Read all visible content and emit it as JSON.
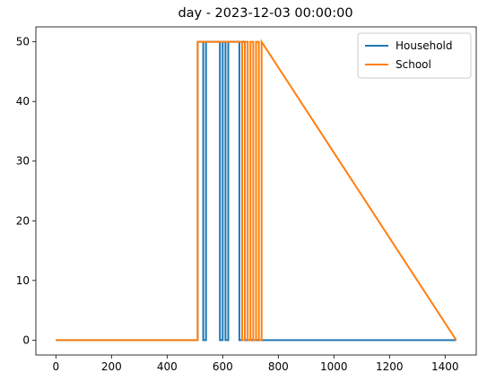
{
  "chart_data": {
    "type": "line",
    "title": "day - 2023-12-03 00:00:00",
    "xlabel": "",
    "ylabel": "",
    "xlim": [
      -72,
      1512
    ],
    "ylim": [
      -2.5,
      52.5
    ],
    "xticks": [
      0,
      200,
      400,
      600,
      800,
      1000,
      1200,
      1400
    ],
    "yticks": [
      0,
      10,
      20,
      30,
      40,
      50
    ],
    "grid": false,
    "legend_position": "top-right",
    "series": [
      {
        "name": "Household",
        "color": "#1f77b4",
        "x": [
          0,
          510,
          510,
          530,
          530,
          540,
          540,
          590,
          590,
          600,
          600,
          610,
          610,
          620,
          620,
          660,
          660,
          670,
          670,
          680,
          680,
          1440
        ],
        "y": [
          0,
          0,
          50,
          50,
          0,
          0,
          50,
          50,
          0,
          0,
          50,
          50,
          0,
          0,
          50,
          50,
          0,
          0,
          50,
          50,
          0,
          0
        ]
      },
      {
        "name": "School",
        "color": "#ff7f0e",
        "x": [
          0,
          510,
          510,
          670,
          670,
          680,
          680,
          690,
          690,
          700,
          700,
          710,
          710,
          720,
          720,
          730,
          730,
          740,
          740,
          1440
        ],
        "y": [
          0,
          0,
          50,
          50,
          0,
          0,
          50,
          50,
          0,
          0,
          50,
          50,
          0,
          0,
          50,
          50,
          0,
          0,
          50,
          0
        ]
      }
    ]
  }
}
